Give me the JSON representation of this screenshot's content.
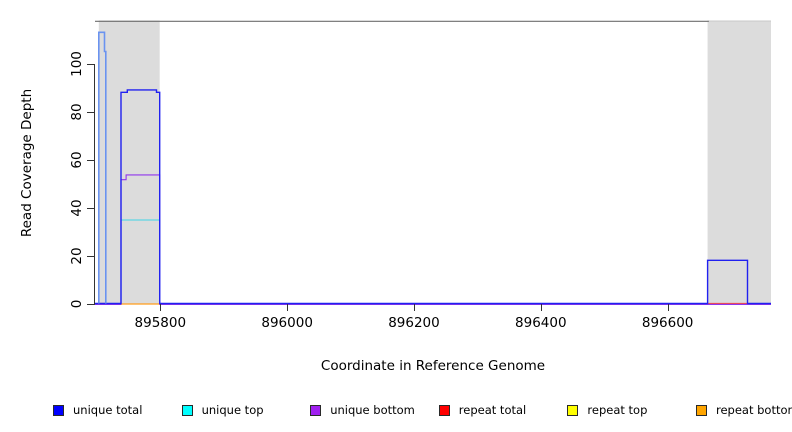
{
  "chart_data": {
    "type": "line",
    "title": "",
    "xlabel": "Coordinate in Reference Genome",
    "ylabel": "Read Coverage Depth",
    "x_ticks": [
      895800,
      896000,
      896200,
      896400,
      896600
    ],
    "y_ticks": [
      0,
      20,
      40,
      60,
      80,
      100
    ],
    "x_domain": [
      895697,
      896763
    ],
    "y_domain": [
      0,
      117.7
    ],
    "grid": false,
    "shaded_regions": [
      {
        "name": "left-gray-band",
        "from": 895703,
        "to": 895799
      },
      {
        "name": "right-gray-band",
        "from": 896663,
        "to": 896763
      }
    ],
    "top_border": {
      "from": 895697,
      "to": 896665
    },
    "band_color": "#dcdcdc",
    "band_edge_color": "#c8c8c8",
    "top_border_color": "#6e6e6e",
    "axis_color": "#333333",
    "series": [
      {
        "name": "repeat total",
        "color": "#e8495a",
        "width": 1.2,
        "dy": 0,
        "segments": [
          [
            [
              895703,
              0
            ],
            [
              895714,
              0
            ]
          ],
          [
            [
              896663,
              0
            ],
            [
              896726,
              0
            ]
          ]
        ]
      },
      {
        "name": "repeat top",
        "color": "#f2e722",
        "width": 1,
        "dy": 0,
        "segments": []
      },
      {
        "name": "unique top",
        "color": "#3fd5e6",
        "width": 1.1,
        "dy": 0.5,
        "segments": [
          [
            [
              895738,
              0
            ],
            [
              895738,
              35
            ],
            [
              895799,
              35
            ],
            [
              895799,
              0
            ]
          ]
        ]
      },
      {
        "name": "unique bottom",
        "color": "#9035eb",
        "width": 1.1,
        "dy": 1,
        "segments": [
          [
            [
              895697,
              0
            ],
            [
              895738,
              0
            ],
            [
              895738,
              52
            ],
            [
              895746,
              52
            ],
            [
              895746,
              54
            ],
            [
              895799,
              54
            ],
            [
              895799,
              0
            ],
            [
              896763,
              0
            ]
          ]
        ]
      },
      {
        "name": "repeat bottom",
        "color": "#ff9d1c",
        "width": 1.3,
        "dy": 0.5,
        "segments": [
          [
            [
              895738,
              0
            ],
            [
              895799,
              0
            ]
          ]
        ]
      },
      {
        "name": "unique total",
        "color": "#2121f0",
        "width": 1.4,
        "dy": 0,
        "segments": [
          [
            [
              895697,
              0
            ],
            [
              895703,
              0
            ],
            [
              895714,
              0
            ],
            [
              895738,
              0
            ],
            [
              895738,
              88
            ],
            [
              895748,
              88
            ],
            [
              895748,
              89
            ],
            [
              895794,
              89
            ],
            [
              895794,
              88
            ],
            [
              895799,
              88
            ],
            [
              895799,
              0
            ],
            [
              896663,
              0
            ],
            [
              896663,
              18
            ],
            [
              896726,
              18
            ],
            [
              896726,
              0
            ],
            [
              896763,
              0
            ]
          ]
        ]
      },
      {
        "name": "unique total spike",
        "color": "#6a93f0",
        "width": 1.6,
        "dy": 0,
        "segments": [
          [
            [
              895703,
              0
            ],
            [
              895703,
              113
            ],
            [
              895712,
              113
            ],
            [
              895712,
              105
            ],
            [
              895714,
              105
            ],
            [
              895714,
              0
            ]
          ]
        ]
      }
    ],
    "legend": [
      {
        "label": "unique total",
        "color": "#0000FF"
      },
      {
        "label": "unique top",
        "color": "#00FFFF"
      },
      {
        "label": "unique bottom",
        "color": "#A020F0"
      },
      {
        "label": "repeat total",
        "color": "#FF0000"
      },
      {
        "label": "repeat top",
        "color": "#FFFF00"
      },
      {
        "label": "repeat bottom",
        "color": "#FFA500"
      }
    ],
    "key_values": {
      "left_spike_height": 113,
      "left_plateau_unique_total": 89,
      "left_plateau_unique_bottom": 54,
      "left_plateau_unique_top": 35,
      "right_plateau_unique_total": 18
    }
  }
}
